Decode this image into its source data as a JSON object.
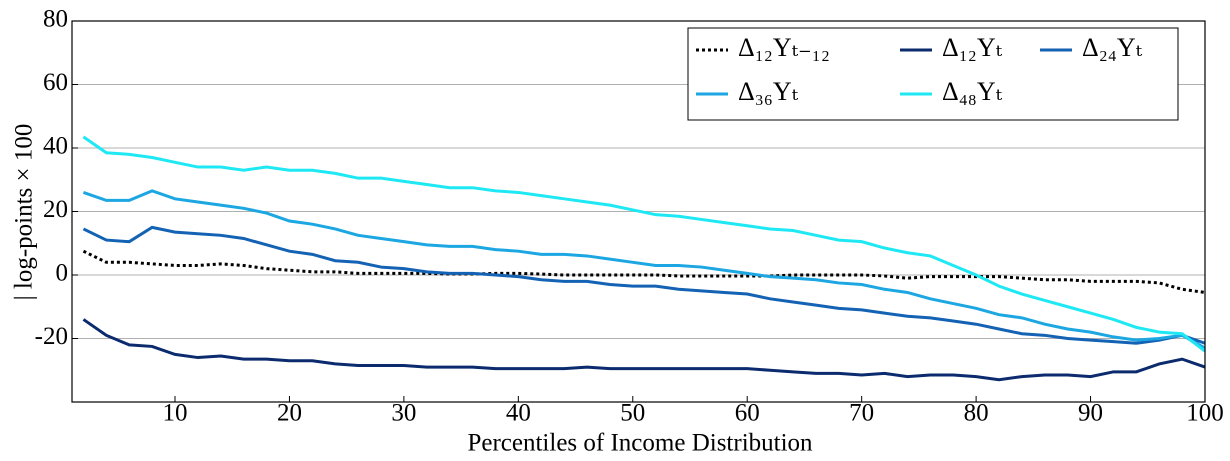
{
  "chart_data": {
    "type": "line",
    "x_label": "Percentiles of Income Distribution",
    "y_label": "| log-points × 100",
    "x": [
      2,
      4,
      6,
      8,
      10,
      12,
      14,
      16,
      18,
      20,
      22,
      24,
      26,
      28,
      30,
      32,
      34,
      36,
      38,
      40,
      42,
      44,
      46,
      48,
      50,
      52,
      54,
      56,
      58,
      60,
      62,
      64,
      66,
      68,
      70,
      72,
      74,
      76,
      78,
      80,
      82,
      84,
      86,
      88,
      90,
      92,
      94,
      96,
      98,
      100
    ],
    "series": [
      {
        "name": "Δ₁₂Yₜ₋₁₂",
        "color": "#000000",
        "dash": true,
        "values": [
          7.5,
          4,
          4,
          3.5,
          3,
          3,
          3.5,
          3,
          2,
          1.5,
          1,
          1,
          0.5,
          0.5,
          0.5,
          0.5,
          0.3,
          0.3,
          0.5,
          0.5,
          0.3,
          0,
          0,
          0,
          0,
          0,
          -0.3,
          -0.3,
          -0.3,
          -0.3,
          -0.3,
          0,
          0,
          0,
          0,
          -0.3,
          -1,
          -0.5,
          -0.5,
          -0.5,
          -0.5,
          -1,
          -1.5,
          -1.5,
          -2,
          -2,
          -2,
          -2.5,
          -4.5,
          -5.5
        ]
      },
      {
        "name": "Δ₁₂Yₜ",
        "color": "#0b2b6e",
        "values": [
          -14,
          -19,
          -22,
          -22.5,
          -25,
          -26,
          -25.5,
          -26.5,
          -26.5,
          -27,
          -27,
          -28,
          -28.5,
          -28.5,
          -28.5,
          -29,
          -29,
          -29,
          -29.5,
          -29.5,
          -29.5,
          -29.5,
          -29,
          -29.5,
          -29.5,
          -29.5,
          -29.5,
          -29.5,
          -29.5,
          -29.5,
          -30,
          -30.5,
          -31,
          -31,
          -31.5,
          -31,
          -32,
          -31.5,
          -31.5,
          -32,
          -33,
          -32,
          -31.5,
          -31.5,
          -32,
          -30.5,
          -30.5,
          -28,
          -26.5,
          -29
        ]
      },
      {
        "name": "Δ₂₄Yₜ",
        "color": "#1462b4",
        "values": [
          14.5,
          11,
          10.5,
          15,
          13.5,
          13,
          12.5,
          11.5,
          9.5,
          7.5,
          6.5,
          4.5,
          4,
          2.5,
          2,
          1,
          0.5,
          0.5,
          0,
          -0.5,
          -1.5,
          -2,
          -2,
          -3,
          -3.5,
          -3.5,
          -4.5,
          -5,
          -5.5,
          -6,
          -7.5,
          -8.5,
          -9.5,
          -10.5,
          -11,
          -12,
          -13,
          -13.5,
          -14.5,
          -15.5,
          -17,
          -18.5,
          -19,
          -20,
          -20.5,
          -21,
          -21.5,
          -20.5,
          -19,
          -21.5
        ]
      },
      {
        "name": "Δ₃₆Yₜ",
        "color": "#1ca6e2",
        "values": [
          26,
          23.5,
          23.5,
          26.5,
          24,
          23,
          22,
          21,
          19.5,
          17,
          16,
          14.5,
          12.5,
          11.5,
          10.5,
          9.5,
          9,
          9,
          8,
          7.5,
          6.5,
          6.5,
          6,
          5,
          4,
          3,
          3,
          2.5,
          1.5,
          0.5,
          -0.5,
          -1,
          -1.5,
          -2.5,
          -3,
          -4.5,
          -5.5,
          -7.5,
          -9,
          -10.5,
          -12.5,
          -13.5,
          -15.5,
          -17,
          -18,
          -19.5,
          -20.5,
          -20,
          -19,
          -23
        ]
      },
      {
        "name": "Δ₄₈Yₜ",
        "color": "#1ee8f4",
        "values": [
          43.5,
          38.5,
          38,
          37,
          35.5,
          34,
          34,
          33,
          34,
          33,
          33,
          32,
          30.5,
          30.5,
          29.5,
          28.5,
          27.5,
          27.5,
          26.5,
          26,
          25,
          24,
          23,
          22,
          20.5,
          19,
          18.5,
          17.5,
          16.5,
          15.5,
          14.5,
          14,
          12.5,
          11,
          10.5,
          8.5,
          7,
          6,
          3,
          0,
          -3.5,
          -6,
          -8,
          -10,
          -12,
          -14,
          -16.5,
          -18,
          -18.5,
          -24
        ]
      }
    ],
    "xlim": [
      1,
      100
    ],
    "ylim": [
      -40,
      80
    ],
    "xticks": [
      10,
      20,
      30,
      40,
      50,
      60,
      70,
      80,
      90,
      100
    ],
    "yticks": [
      -20,
      0,
      20,
      40,
      60,
      80
    ],
    "grid": true,
    "legend": "upper right"
  }
}
